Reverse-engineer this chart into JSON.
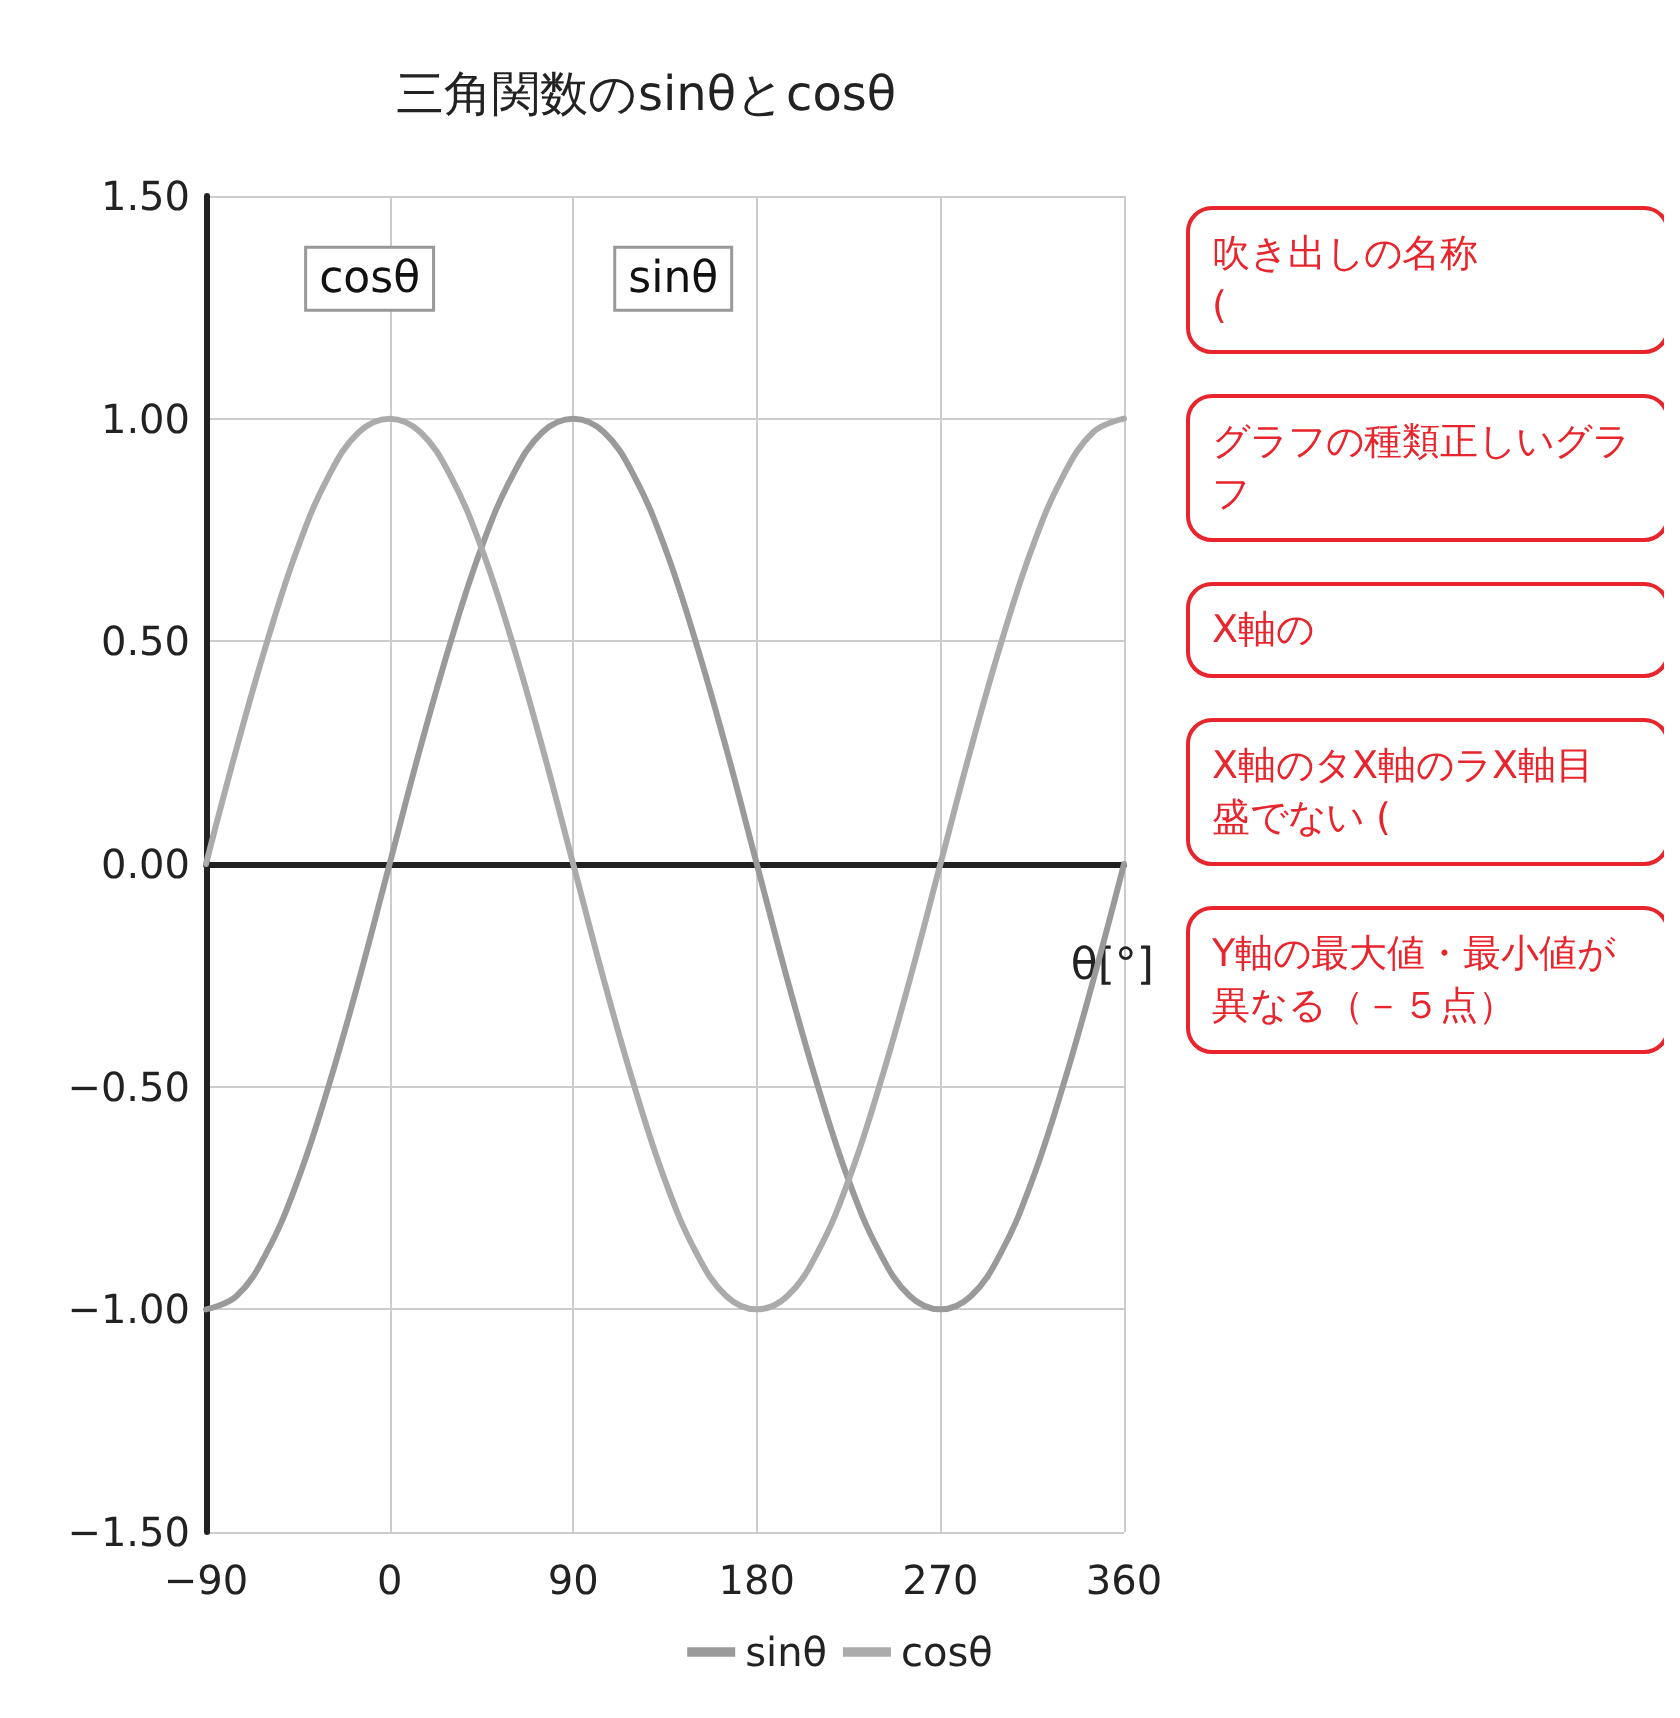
{
  "chart_data": {
    "type": "line",
    "title": "三角関数のsinθとcosθ",
    "xlabel": "θ[°]",
    "x": [
      -90,
      -75,
      -60,
      -45,
      -30,
      -15,
      0,
      15,
      30,
      45,
      60,
      75,
      90,
      105,
      120,
      135,
      150,
      165,
      180,
      195,
      210,
      225,
      240,
      255,
      270,
      285,
      300,
      315,
      330,
      345,
      360
    ],
    "series": [
      {
        "name": "sinθ",
        "color": "#9a9a9a",
        "values": [
          -1,
          -0.97,
          -0.87,
          -0.71,
          -0.5,
          -0.26,
          0,
          0.26,
          0.5,
          0.71,
          0.87,
          0.97,
          1,
          0.97,
          0.87,
          0.71,
          0.5,
          0.26,
          0,
          -0.26,
          -0.5,
          -0.71,
          -0.87,
          -0.97,
          -1,
          -0.97,
          -0.87,
          -0.71,
          -0.5,
          -0.26,
          0
        ]
      },
      {
        "name": "cosθ",
        "color": "#ababab",
        "values": [
          0,
          0.26,
          0.5,
          0.71,
          0.87,
          0.97,
          1,
          0.97,
          0.87,
          0.71,
          0.5,
          0.26,
          0,
          -0.26,
          -0.5,
          -0.71,
          -0.87,
          -0.97,
          -1,
          -0.97,
          -0.87,
          -0.71,
          -0.5,
          -0.26,
          0,
          0.26,
          0.5,
          0.71,
          0.87,
          0.97,
          1
        ]
      }
    ],
    "xlim": [
      -90,
      360
    ],
    "xticks": [
      {
        "value": -90,
        "label": "−90"
      },
      0,
      90,
      180,
      270,
      360
    ],
    "ylim": [
      -1.5,
      1.5
    ],
    "yticks": [
      {
        "value": -1.5,
        "label": "−1.50"
      },
      {
        "value": -1,
        "label": "−1.00"
      },
      {
        "value": -0.5,
        "label": "−0.50"
      },
      {
        "value": 0,
        "label": "0.00"
      },
      {
        "value": 0.5,
        "label": "0.50"
      },
      {
        "value": 1,
        "label": "1.00"
      },
      {
        "value": 1.5,
        "label": "1.50"
      }
    ],
    "grid": true,
    "legend": "bottom",
    "marker": "none",
    "line_style": "solid",
    "annotations": [
      "吹き出しの名称\n(",
      "グラフの種類正しいグラフ",
      "X軸の",
      "X軸のタX軸のラX軸目盛でない (",
      "Y軸の最大値・最小値が異なる（－５点）"
    ]
  }
}
